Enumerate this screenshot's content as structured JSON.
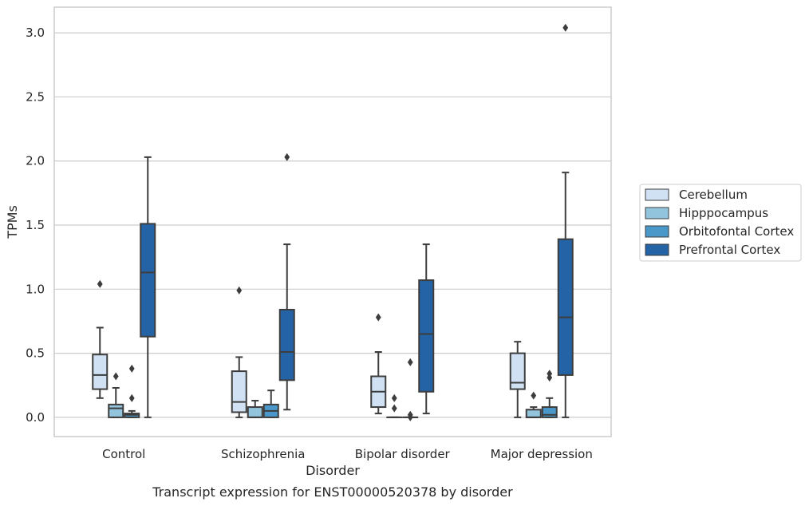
{
  "chart_data": {
    "type": "box",
    "title": "",
    "caption": "Transcript expression for ENST00000520378 by disorder",
    "xlabel": "Disorder",
    "ylabel": "TPMs",
    "ylim": [
      -0.15,
      3.2
    ],
    "yticks": [
      0.0,
      0.5,
      1.0,
      1.5,
      2.0,
      2.5,
      3.0
    ],
    "ytick_labels": [
      "0.0",
      "0.5",
      "1.0",
      "1.5",
      "2.0",
      "2.5",
      "3.0"
    ],
    "grid": "horizontal",
    "legend_position": "right",
    "categories": [
      "Control",
      "Schizophrenia",
      "Bipolar disorder",
      "Major depression"
    ],
    "series": [
      {
        "name": "Cerebellum",
        "color": "#cfe1f2",
        "boxes": [
          {
            "q1": 0.22,
            "median": 0.33,
            "q3": 0.49,
            "whisker_low": 0.15,
            "whisker_high": 0.7,
            "outliers": [
              1.04
            ]
          },
          {
            "q1": 0.04,
            "median": 0.12,
            "q3": 0.36,
            "whisker_low": 0.0,
            "whisker_high": 0.47,
            "outliers": [
              0.99
            ]
          },
          {
            "q1": 0.08,
            "median": 0.2,
            "q3": 0.32,
            "whisker_low": 0.03,
            "whisker_high": 0.51,
            "outliers": [
              0.78
            ]
          },
          {
            "q1": 0.22,
            "median": 0.27,
            "q3": 0.5,
            "whisker_low": 0.0,
            "whisker_high": 0.59,
            "outliers": []
          }
        ]
      },
      {
        "name": "Hipppocampus",
        "color": "#93c4de",
        "boxes": [
          {
            "q1": 0.0,
            "median": 0.07,
            "q3": 0.1,
            "whisker_low": 0.0,
            "whisker_high": 0.23,
            "outliers": [
              0.32
            ]
          },
          {
            "q1": 0.0,
            "median": 0.0,
            "q3": 0.08,
            "whisker_low": 0.0,
            "whisker_high": 0.13,
            "outliers": []
          },
          {
            "q1": 0.0,
            "median": 0.0,
            "q3": 0.0,
            "whisker_low": 0.0,
            "whisker_high": 0.0,
            "outliers": [
              0.15,
              0.07
            ]
          },
          {
            "q1": 0.0,
            "median": 0.0,
            "q3": 0.06,
            "whisker_low": 0.0,
            "whisker_high": 0.08,
            "outliers": [
              0.17
            ]
          }
        ]
      },
      {
        "name": "Orbitofontal Cortex",
        "color": "#4a98c9",
        "boxes": [
          {
            "q1": 0.0,
            "median": 0.02,
            "q3": 0.03,
            "whisker_low": 0.0,
            "whisker_high": 0.05,
            "outliers": [
              0.38,
              0.15
            ]
          },
          {
            "q1": 0.0,
            "median": 0.05,
            "q3": 0.1,
            "whisker_low": 0.0,
            "whisker_high": 0.21,
            "outliers": []
          },
          {
            "q1": 0.0,
            "median": 0.0,
            "q3": 0.0,
            "whisker_low": 0.0,
            "whisker_high": 0.0,
            "outliers": [
              0.43,
              0.02,
              0.0
            ]
          },
          {
            "q1": 0.0,
            "median": 0.02,
            "q3": 0.08,
            "whisker_low": 0.0,
            "whisker_high": 0.15,
            "outliers": [
              0.34,
              0.31
            ]
          }
        ]
      },
      {
        "name": "Prefrontal Cortex",
        "color": "#2363a6",
        "boxes": [
          {
            "q1": 0.63,
            "median": 1.13,
            "q3": 1.51,
            "whisker_low": 0.0,
            "whisker_high": 2.03,
            "outliers": []
          },
          {
            "q1": 0.29,
            "median": 0.51,
            "q3": 0.84,
            "whisker_low": 0.06,
            "whisker_high": 1.35,
            "outliers": [
              2.03
            ]
          },
          {
            "q1": 0.2,
            "median": 0.65,
            "q3": 1.07,
            "whisker_low": 0.03,
            "whisker_high": 1.35,
            "outliers": []
          },
          {
            "q1": 0.33,
            "median": 0.78,
            "q3": 1.39,
            "whisker_low": 0.0,
            "whisker_high": 1.91,
            "outliers": [
              3.04
            ]
          }
        ]
      }
    ]
  },
  "style": {
    "edge_color": "#3d3d3d",
    "grid_color": "#cccccc",
    "frame_color": "#cccccc"
  }
}
